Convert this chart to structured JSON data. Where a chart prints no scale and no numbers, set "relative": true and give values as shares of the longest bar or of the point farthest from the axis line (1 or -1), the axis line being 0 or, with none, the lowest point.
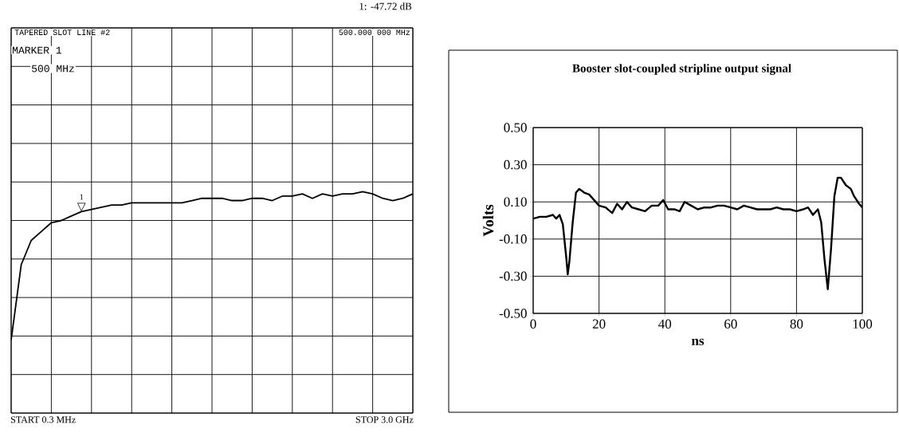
{
  "chart_data": [
    {
      "type": "line",
      "relative": true,
      "grid": true,
      "categories": [
        null,
        null,
        null,
        null,
        null,
        null,
        null,
        null,
        null,
        null,
        null,
        null,
        null,
        null,
        null,
        null,
        null,
        null,
        null,
        null,
        null,
        null,
        null,
        null,
        null,
        null,
        null,
        null,
        null,
        null,
        null,
        null,
        null,
        null,
        null,
        null,
        null,
        null,
        null,
        null,
        null
      ],
      "series": [
        {
          "color": "#000000",
          "values": [
            0.33,
            0.67,
            0.78,
            0.82,
            0.86,
            0.87,
            0.89,
            0.91,
            0.92,
            0.93,
            0.94,
            0.94,
            0.95,
            0.95,
            0.95,
            0.95,
            0.95,
            0.95,
            0.96,
            0.97,
            0.97,
            0.97,
            0.96,
            0.96,
            0.97,
            0.97,
            0.96,
            0.98,
            0.98,
            0.99,
            0.97,
            0.99,
            0.98,
            0.99,
            0.99,
            1.0,
            0.99,
            0.97,
            0.96,
            0.97,
            0.99
          ]
        }
      ],
      "annotations": [
        "1: -47.72 dB",
        "TAPERED SLOT LINE #2",
        "500.000 000 MHz",
        "MARKER 1",
        "500 MHz",
        "1",
        "▽",
        "START 0.3 MHz",
        "STOP 3.0 GHz"
      ]
    },
    {
      "type": "line",
      "title": "Booster slot-coupled stripline output signal",
      "xlabel": "ns",
      "ylabel": "Volts",
      "grid": true,
      "xlim": [
        0,
        100
      ],
      "ylim": [
        -0.5,
        0.5
      ],
      "xticks": [
        0,
        20,
        40,
        60,
        80,
        100
      ],
      "yticks": [
        {
          "value": -0.5,
          "label": "-0.50"
        },
        {
          "value": -0.3,
          "label": "-0.30"
        },
        {
          "value": -0.1,
          "label": "-0.10"
        },
        {
          "value": 0.1,
          "label": "0.10"
        },
        {
          "value": 0.3,
          "label": "0.30"
        },
        {
          "value": 0.5,
          "label": "0.50"
        }
      ],
      "x": [
        0,
        2,
        4,
        6,
        7,
        8,
        9,
        10,
        10.5,
        11,
        12,
        13,
        14,
        15.5,
        17,
        18.5,
        20,
        22,
        24,
        25.5,
        27,
        28.5,
        30,
        32,
        34,
        36,
        38,
        39.5,
        41,
        43,
        44.5,
        46,
        48,
        50,
        52,
        54,
        56,
        58,
        60,
        62,
        64,
        66,
        68,
        70,
        72,
        74,
        76,
        78,
        80,
        82,
        83.5,
        85,
        86.5,
        87.5,
        88.5,
        89.5,
        90.5,
        91.5,
        92.5,
        93.5,
        95,
        96.5,
        97.5,
        99,
        100
      ],
      "series": [
        {
          "color": "#000000",
          "values": [
            0.01,
            0.02,
            0.02,
            0.03,
            0.01,
            0.03,
            -0.02,
            -0.19,
            -0.29,
            -0.22,
            -0.01,
            0.15,
            0.17,
            0.15,
            0.14,
            0.11,
            0.08,
            0.07,
            0.04,
            0.09,
            0.06,
            0.1,
            0.07,
            0.06,
            0.05,
            0.08,
            0.08,
            0.11,
            0.06,
            0.06,
            0.05,
            0.1,
            0.08,
            0.06,
            0.07,
            0.07,
            0.08,
            0.08,
            0.07,
            0.06,
            0.08,
            0.07,
            0.06,
            0.06,
            0.06,
            0.07,
            0.06,
            0.06,
            0.05,
            0.06,
            0.07,
            0.03,
            0.06,
            -0.01,
            -0.21,
            -0.37,
            -0.15,
            0.13,
            0.23,
            0.23,
            0.19,
            0.17,
            0.13,
            0.09,
            0.07
          ]
        }
      ]
    }
  ]
}
